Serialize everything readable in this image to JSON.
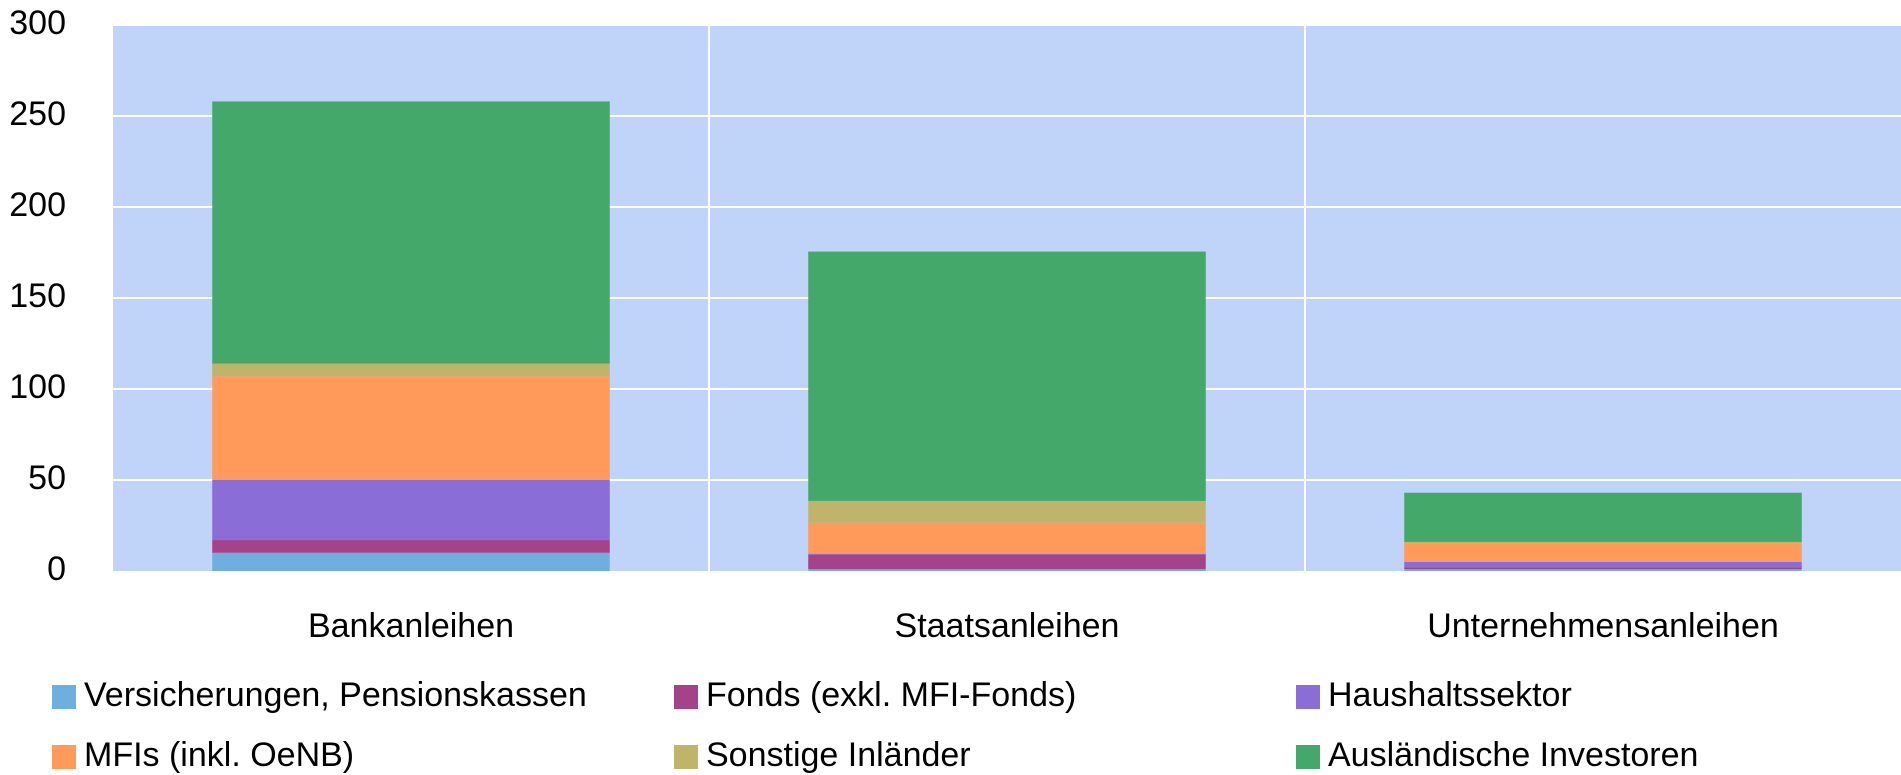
{
  "chart_data": {
    "type": "stacked_bar",
    "categories": [
      "Bankanleihen",
      "Staatsanleihen",
      "Unternehmensanleihen"
    ],
    "series": [
      {
        "name": "Versicherungen, Pensionskassen",
        "color": "#6fafe0",
        "values": [
          10,
          1,
          1
        ]
      },
      {
        "name": "Fonds (exkl. MFI-Fonds)",
        "color": "#a4438a",
        "values": [
          7,
          8,
          1
        ]
      },
      {
        "name": "Haushaltssektor",
        "color": "#8a6dd6",
        "values": [
          33,
          0.5,
          3
        ]
      },
      {
        "name": "MFIs (inkl. OeNB)",
        "color": "#ff9a5a",
        "values": [
          57,
          17,
          10
        ]
      },
      {
        "name": "Sonstige Inländer",
        "color": "#c0b46a",
        "values": [
          7,
          12,
          1
        ]
      },
      {
        "name": "Ausländische Investoren",
        "color": "#44a86a",
        "values": [
          144,
          137,
          27
        ]
      }
    ],
    "ylim": [
      0,
      300
    ],
    "yticks": [
      0,
      50,
      100,
      150,
      200,
      250,
      300
    ],
    "grid": true,
    "legend": "bottom"
  }
}
